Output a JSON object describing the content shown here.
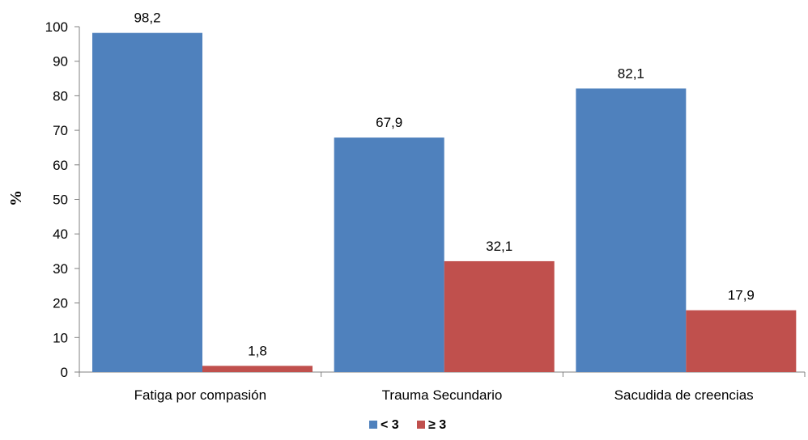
{
  "chart_data": {
    "type": "bar",
    "ylabel": "%",
    "xlabel": "",
    "ylim": [
      0,
      100
    ],
    "yticks": [
      0,
      10,
      20,
      30,
      40,
      50,
      60,
      70,
      80,
      90,
      100
    ],
    "categories": [
      "Fatiga por compasión",
      "Trauma Secundario",
      "Sacudida de creencias"
    ],
    "series": [
      {
        "name": "< 3",
        "values": [
          98.2,
          67.9,
          82.1
        ],
        "labels": [
          "98,2",
          "67,9",
          "82,1"
        ],
        "color": "#4F81BD"
      },
      {
        "name": "≥ 3",
        "values": [
          1.8,
          32.1,
          17.9
        ],
        "labels": [
          "1,8",
          "32,1",
          "17,9"
        ],
        "color": "#C0504D"
      }
    ],
    "grid": false,
    "legend_position": "bottom"
  }
}
